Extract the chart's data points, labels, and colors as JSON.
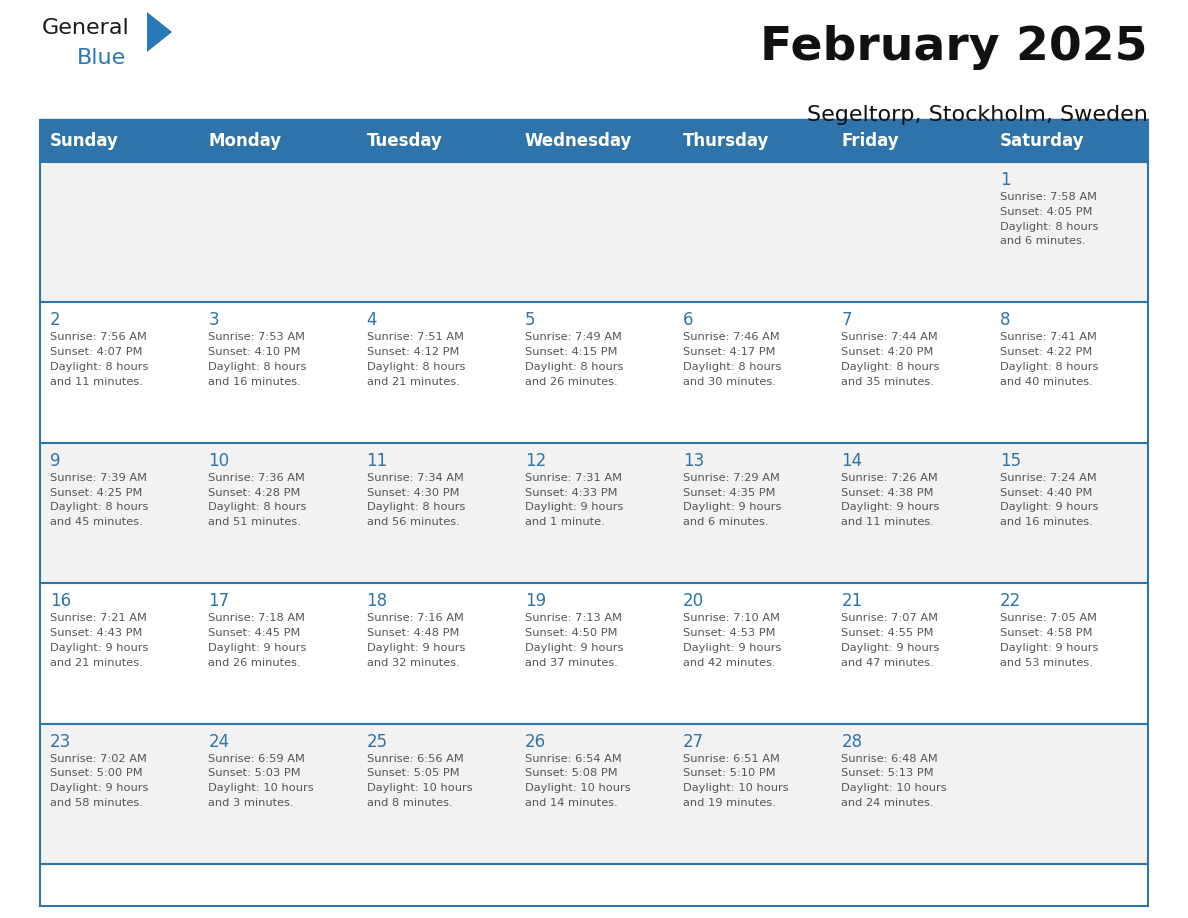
{
  "title": "February 2025",
  "subtitle": "Segeltorp, Stockholm, Sweden",
  "header_color": "#2E74AA",
  "header_text_color": "#FFFFFF",
  "cell_bg_row0": "#F2F2F2",
  "cell_bg_row1": "#FFFFFF",
  "cell_bg_row2": "#F2F2F2",
  "cell_bg_row3": "#FFFFFF",
  "cell_bg_row4": "#F2F2F2",
  "border_color": "#2E74AA",
  "day_number_color": "#2E74AA",
  "text_color": "#555555",
  "days_of_week": [
    "Sunday",
    "Monday",
    "Tuesday",
    "Wednesday",
    "Thursday",
    "Friday",
    "Saturday"
  ],
  "logo_color1": "#1a1a1a",
  "logo_color2": "#2779B8",
  "calendar": [
    [
      {
        "day": null,
        "info": ""
      },
      {
        "day": null,
        "info": ""
      },
      {
        "day": null,
        "info": ""
      },
      {
        "day": null,
        "info": ""
      },
      {
        "day": null,
        "info": ""
      },
      {
        "day": null,
        "info": ""
      },
      {
        "day": 1,
        "info": "Sunrise: 7:58 AM\nSunset: 4:05 PM\nDaylight: 8 hours\nand 6 minutes."
      }
    ],
    [
      {
        "day": 2,
        "info": "Sunrise: 7:56 AM\nSunset: 4:07 PM\nDaylight: 8 hours\nand 11 minutes."
      },
      {
        "day": 3,
        "info": "Sunrise: 7:53 AM\nSunset: 4:10 PM\nDaylight: 8 hours\nand 16 minutes."
      },
      {
        "day": 4,
        "info": "Sunrise: 7:51 AM\nSunset: 4:12 PM\nDaylight: 8 hours\nand 21 minutes."
      },
      {
        "day": 5,
        "info": "Sunrise: 7:49 AM\nSunset: 4:15 PM\nDaylight: 8 hours\nand 26 minutes."
      },
      {
        "day": 6,
        "info": "Sunrise: 7:46 AM\nSunset: 4:17 PM\nDaylight: 8 hours\nand 30 minutes."
      },
      {
        "day": 7,
        "info": "Sunrise: 7:44 AM\nSunset: 4:20 PM\nDaylight: 8 hours\nand 35 minutes."
      },
      {
        "day": 8,
        "info": "Sunrise: 7:41 AM\nSunset: 4:22 PM\nDaylight: 8 hours\nand 40 minutes."
      }
    ],
    [
      {
        "day": 9,
        "info": "Sunrise: 7:39 AM\nSunset: 4:25 PM\nDaylight: 8 hours\nand 45 minutes."
      },
      {
        "day": 10,
        "info": "Sunrise: 7:36 AM\nSunset: 4:28 PM\nDaylight: 8 hours\nand 51 minutes."
      },
      {
        "day": 11,
        "info": "Sunrise: 7:34 AM\nSunset: 4:30 PM\nDaylight: 8 hours\nand 56 minutes."
      },
      {
        "day": 12,
        "info": "Sunrise: 7:31 AM\nSunset: 4:33 PM\nDaylight: 9 hours\nand 1 minute."
      },
      {
        "day": 13,
        "info": "Sunrise: 7:29 AM\nSunset: 4:35 PM\nDaylight: 9 hours\nand 6 minutes."
      },
      {
        "day": 14,
        "info": "Sunrise: 7:26 AM\nSunset: 4:38 PM\nDaylight: 9 hours\nand 11 minutes."
      },
      {
        "day": 15,
        "info": "Sunrise: 7:24 AM\nSunset: 4:40 PM\nDaylight: 9 hours\nand 16 minutes."
      }
    ],
    [
      {
        "day": 16,
        "info": "Sunrise: 7:21 AM\nSunset: 4:43 PM\nDaylight: 9 hours\nand 21 minutes."
      },
      {
        "day": 17,
        "info": "Sunrise: 7:18 AM\nSunset: 4:45 PM\nDaylight: 9 hours\nand 26 minutes."
      },
      {
        "day": 18,
        "info": "Sunrise: 7:16 AM\nSunset: 4:48 PM\nDaylight: 9 hours\nand 32 minutes."
      },
      {
        "day": 19,
        "info": "Sunrise: 7:13 AM\nSunset: 4:50 PM\nDaylight: 9 hours\nand 37 minutes."
      },
      {
        "day": 20,
        "info": "Sunrise: 7:10 AM\nSunset: 4:53 PM\nDaylight: 9 hours\nand 42 minutes."
      },
      {
        "day": 21,
        "info": "Sunrise: 7:07 AM\nSunset: 4:55 PM\nDaylight: 9 hours\nand 47 minutes."
      },
      {
        "day": 22,
        "info": "Sunrise: 7:05 AM\nSunset: 4:58 PM\nDaylight: 9 hours\nand 53 minutes."
      }
    ],
    [
      {
        "day": 23,
        "info": "Sunrise: 7:02 AM\nSunset: 5:00 PM\nDaylight: 9 hours\nand 58 minutes."
      },
      {
        "day": 24,
        "info": "Sunrise: 6:59 AM\nSunset: 5:03 PM\nDaylight: 10 hours\nand 3 minutes."
      },
      {
        "day": 25,
        "info": "Sunrise: 6:56 AM\nSunset: 5:05 PM\nDaylight: 10 hours\nand 8 minutes."
      },
      {
        "day": 26,
        "info": "Sunrise: 6:54 AM\nSunset: 5:08 PM\nDaylight: 10 hours\nand 14 minutes."
      },
      {
        "day": 27,
        "info": "Sunrise: 6:51 AM\nSunset: 5:10 PM\nDaylight: 10 hours\nand 19 minutes."
      },
      {
        "day": 28,
        "info": "Sunrise: 6:48 AM\nSunset: 5:13 PM\nDaylight: 10 hours\nand 24 minutes."
      },
      {
        "day": null,
        "info": ""
      }
    ]
  ]
}
